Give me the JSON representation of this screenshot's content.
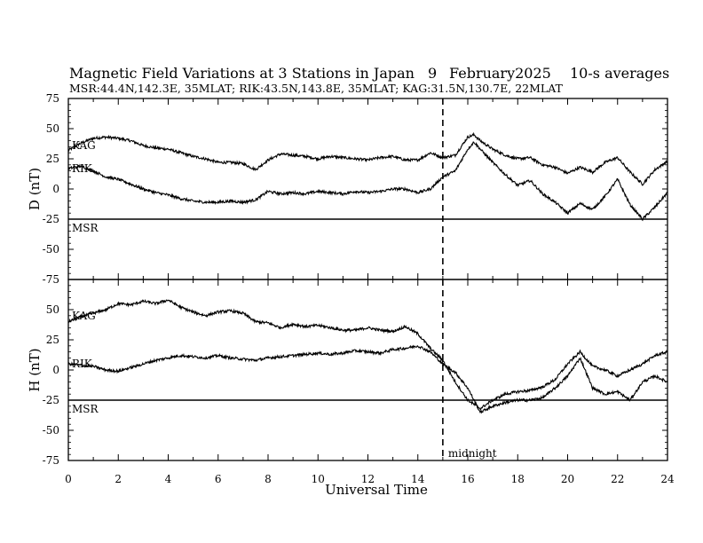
{
  "header": {
    "title": "Magnetic Field Variations at 3 Stations in Japan",
    "day": "9",
    "month_year": "February2025",
    "averaging": "10-s averages",
    "stations_line": "MSR:44.4N,142.3E, 35MLAT;  RIK:43.5N,143.8E, 35MLAT;  KAG:31.5N,130.7E, 22MLAT"
  },
  "chart_data": [
    {
      "type": "line",
      "panel": "D",
      "ylabel": "D (nT)",
      "xlabel": "",
      "xlim": [
        0,
        24
      ],
      "ylim": [
        -75,
        75
      ],
      "xticks": [
        "0",
        "2",
        "4",
        "6",
        "8",
        "10",
        "12",
        "14",
        "16",
        "18",
        "20",
        "22",
        "24"
      ],
      "yticks": [
        "75",
        "50",
        "25",
        "0",
        "-25",
        "-50",
        "-75"
      ],
      "series": [
        {
          "name": "KAG",
          "x": [
            0,
            0.5,
            1,
            1.5,
            2,
            2.5,
            3,
            3.5,
            4,
            4.5,
            5,
            5.5,
            6,
            6.5,
            7,
            7.5,
            8,
            8.5,
            9,
            9.5,
            10,
            10.5,
            11,
            11.5,
            12,
            12.5,
            13,
            13.5,
            14,
            14.5,
            15,
            15.5,
            16,
            16.25,
            16.5,
            17,
            17.5,
            18,
            18.5,
            19,
            19.5,
            20,
            20.5,
            21,
            21.5,
            22,
            22.5,
            23,
            23.5,
            24
          ],
          "y": [
            32,
            38,
            42,
            43,
            42,
            40,
            36,
            34,
            33,
            30,
            27,
            25,
            22,
            22,
            21,
            16,
            24,
            29,
            28,
            27,
            25,
            27,
            26,
            25,
            24,
            26,
            27,
            24,
            24,
            30,
            26,
            28,
            43,
            45,
            40,
            33,
            28,
            25,
            26,
            20,
            18,
            13,
            18,
            14,
            22,
            26,
            14,
            4,
            16,
            23
          ]
        },
        {
          "name": "RIK",
          "x": [
            0,
            0.5,
            1,
            1.5,
            2,
            2.5,
            3,
            3.5,
            4,
            4.5,
            5,
            5.5,
            6,
            6.5,
            7,
            7.5,
            8,
            8.5,
            9,
            9.5,
            10,
            10.5,
            11,
            11.5,
            12,
            12.5,
            13,
            13.5,
            14,
            14.5,
            15,
            15.5,
            16,
            16.25,
            16.5,
            17,
            17.5,
            18,
            18.5,
            19,
            19.5,
            20,
            20.5,
            21,
            21.5,
            22,
            22.5,
            23,
            23.5,
            24
          ],
          "y": [
            17,
            19,
            15,
            10,
            8,
            4,
            0,
            -3,
            -5,
            -8,
            -10,
            -11,
            -11,
            -10,
            -11,
            -9,
            -2,
            -4,
            -3,
            -4,
            -2,
            -3,
            -4,
            -2,
            -3,
            -2,
            0,
            0,
            -3,
            0,
            10,
            15,
            33,
            39,
            33,
            22,
            12,
            3,
            7,
            -4,
            -11,
            -20,
            -12,
            -17,
            -6,
            8,
            -13,
            -25,
            -15,
            -3
          ]
        },
        {
          "name": "MSR",
          "x": [
            0,
            24
          ],
          "y": [
            -25,
            -25
          ]
        }
      ]
    },
    {
      "type": "line",
      "panel": "H",
      "ylabel": "H (nT)",
      "xlabel": "Universal Time",
      "xlim": [
        0,
        24
      ],
      "ylim": [
        -75,
        75
      ],
      "xticks": [
        "0",
        "2",
        "4",
        "6",
        "8",
        "10",
        "12",
        "14",
        "16",
        "18",
        "20",
        "22",
        "24"
      ],
      "yticks": [
        "75",
        "50",
        "25",
        "0",
        "-25",
        "-50",
        "-75"
      ],
      "series": [
        {
          "name": "KAG",
          "x": [
            0,
            0.5,
            1,
            1.5,
            2,
            2.5,
            3,
            3.5,
            4,
            4.5,
            5,
            5.5,
            6,
            6.5,
            7,
            7.5,
            8,
            8.5,
            9,
            9.5,
            10,
            10.5,
            11,
            11.5,
            12,
            12.5,
            13,
            13.5,
            14,
            14.5,
            15,
            15.5,
            16,
            16.5,
            17,
            17.5,
            18,
            18.5,
            19,
            19.5,
            20,
            20.5,
            21,
            21.5,
            22,
            22.5,
            23,
            23.5,
            24
          ],
          "y": [
            40,
            44,
            47,
            50,
            55,
            54,
            57,
            55,
            58,
            52,
            48,
            45,
            48,
            49,
            47,
            40,
            39,
            35,
            38,
            36,
            37,
            35,
            33,
            33,
            35,
            33,
            32,
            36,
            30,
            18,
            8,
            -10,
            -25,
            -32,
            -25,
            -20,
            -18,
            -17,
            -14,
            -8,
            5,
            15,
            3,
            0,
            -5,
            0,
            5,
            12,
            15
          ]
        },
        {
          "name": "RIK",
          "x": [
            0,
            0.5,
            1,
            1.5,
            2,
            2.5,
            3,
            3.5,
            4,
            4.5,
            5,
            5.5,
            6,
            6.5,
            7,
            7.5,
            8,
            8.5,
            9,
            9.5,
            10,
            10.5,
            11,
            11.5,
            12,
            12.5,
            13,
            13.5,
            14,
            14.5,
            15,
            15.5,
            16,
            16.5,
            17,
            17.5,
            18,
            18.5,
            19,
            19.5,
            20,
            20.5,
            21,
            21.5,
            22,
            22.5,
            23,
            23.5,
            24
          ],
          "y": [
            5,
            4,
            3,
            0,
            -1,
            2,
            5,
            8,
            10,
            12,
            11,
            10,
            12,
            10,
            9,
            8,
            10,
            11,
            12,
            13,
            14,
            13,
            14,
            16,
            15,
            14,
            17,
            18,
            20,
            15,
            5,
            -2,
            -15,
            -35,
            -30,
            -27,
            -25,
            -25,
            -23,
            -15,
            -5,
            10,
            -15,
            -20,
            -18,
            -25,
            -10,
            -5,
            -10
          ]
        },
        {
          "name": "MSR",
          "x": [
            0,
            24
          ],
          "y": [
            -25,
            -25
          ]
        }
      ]
    }
  ],
  "annotations": {
    "midnight_label": "midnight",
    "midnight_ut": 15
  }
}
